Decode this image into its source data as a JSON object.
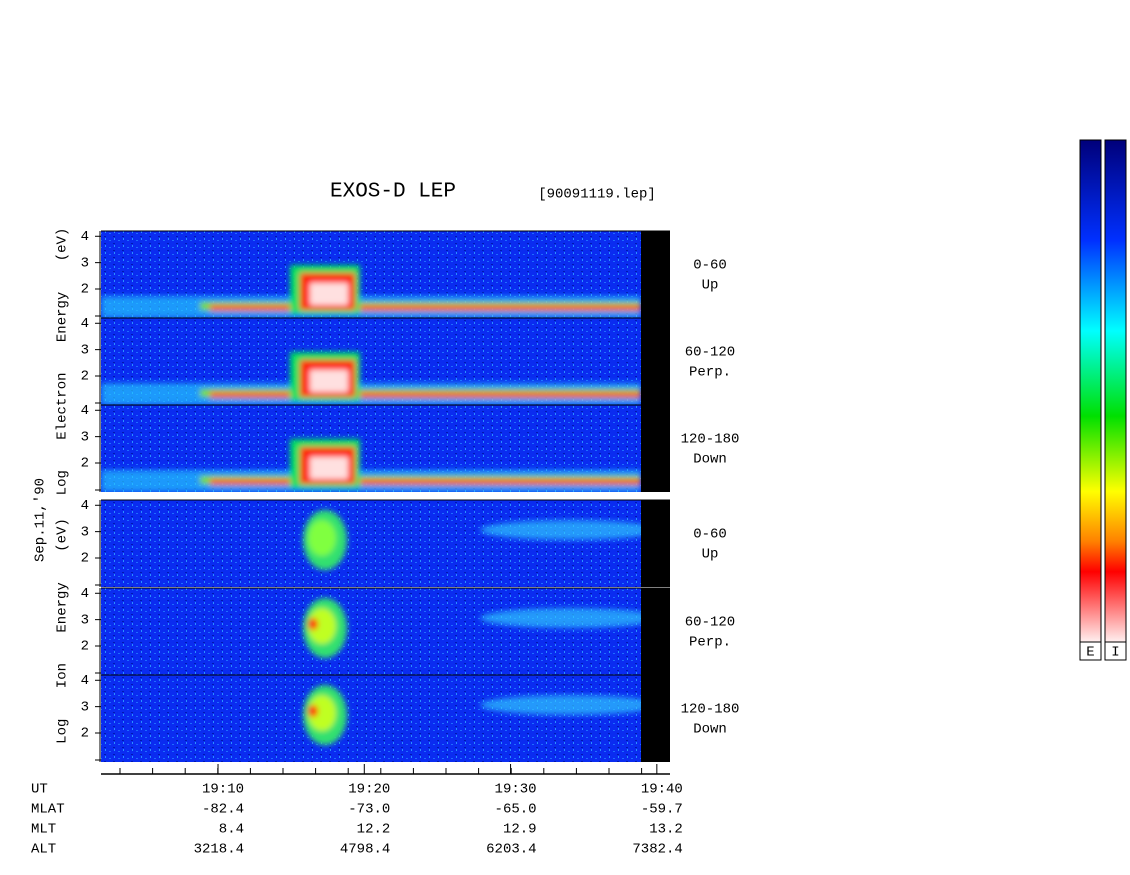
{
  "chart_data": {
    "type": "spectrogram",
    "title": "EXOS-D LEP",
    "file": "[90091119.lep]",
    "date": "Sep.11,'90",
    "xlim": [
      2,
      40.9
    ],
    "xticks": [
      {
        "value": 10,
        "label": "19:10"
      },
      {
        "value": 20,
        "label": "19:20"
      },
      {
        "value": 30,
        "label": "19:30"
      },
      {
        "value": 40,
        "label": "19:40"
      }
    ],
    "xlabel": "UT",
    "ylim": [
      0.9,
      4.2
    ],
    "yticks": [
      2,
      3,
      4
    ],
    "groups": [
      {
        "ylabel": "Log Electron Energy (eV)",
        "species": "electron",
        "panels": [
          {
            "angle": "0-60",
            "direction": "Up"
          },
          {
            "angle": "60-120",
            "direction": "Perp."
          },
          {
            "angle": "120-180",
            "direction": "Down"
          }
        ]
      },
      {
        "ylabel": "Log Ion Energy (eV)",
        "species": "ion",
        "panels": [
          {
            "angle": "0-60",
            "direction": "Up"
          },
          {
            "angle": "60-120",
            "direction": "Perp."
          },
          {
            "angle": "120-180",
            "direction": "Down"
          }
        ]
      }
    ],
    "table": [
      {
        "label": "MLAT",
        "values": [
          "-82.4",
          "-73.0",
          "-65.0",
          "-59.7"
        ]
      },
      {
        "label": "MLT",
        "values": [
          "8.4",
          "12.2",
          "12.9",
          "13.2"
        ]
      },
      {
        "label": "ALT",
        "values": [
          "3218.4",
          "4798.4",
          "6203.4",
          "7382.4"
        ]
      }
    ],
    "colorbars": [
      "E",
      "I"
    ]
  }
}
